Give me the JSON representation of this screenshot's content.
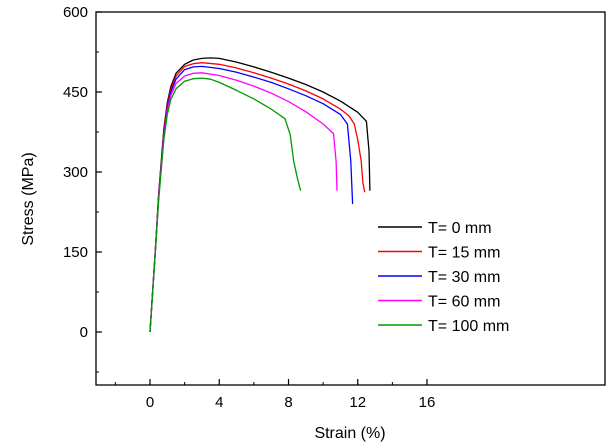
{
  "chart_data": {
    "type": "line",
    "xlabel": "Strain (%)",
    "ylabel": "Stress (MPa)",
    "xlim": [
      -2,
      17
    ],
    "ylim": [
      -100,
      600
    ],
    "xticks": [
      0,
      4,
      8,
      12,
      16
    ],
    "xtick_labels": [
      "0",
      "4",
      "8",
      "12",
      "16"
    ],
    "yticks": [
      0,
      150,
      300,
      450,
      600
    ],
    "ytick_labels": [
      "0",
      "150",
      "300",
      "450",
      "600"
    ],
    "grid": false,
    "legend_position": "center-right",
    "series": [
      {
        "name": "T= 0 mm",
        "color": "#000000",
        "x": [
          0,
          0.3,
          0.5,
          0.8,
          1.0,
          1.2,
          1.5,
          2.0,
          2.5,
          3.0,
          3.5,
          4.0,
          5.0,
          6.0,
          7.0,
          8.0,
          9.0,
          10.0,
          11.0,
          12.0,
          12.5,
          12.65,
          12.7
        ],
        "y": [
          0,
          150,
          260,
          380,
          430,
          460,
          485,
          502,
          510,
          513,
          514,
          513,
          506,
          497,
          487,
          476,
          464,
          450,
          433,
          412,
          395,
          340,
          265
        ]
      },
      {
        "name": "T= 15 mm",
        "color": "#ff0000",
        "x": [
          0,
          0.3,
          0.5,
          0.8,
          1.0,
          1.2,
          1.5,
          2.0,
          2.5,
          3.0,
          4.0,
          5.0,
          6.0,
          7.0,
          8.0,
          9.0,
          10.0,
          11.0,
          11.5,
          11.8,
          12.0,
          12.2,
          12.3,
          12.4
        ],
        "y": [
          0,
          150,
          258,
          375,
          425,
          455,
          480,
          498,
          503,
          505,
          502,
          495,
          486,
          476,
          465,
          452,
          437,
          418,
          405,
          390,
          360,
          320,
          280,
          262
        ]
      },
      {
        "name": "T= 30 mm",
        "color": "#0000ff",
        "x": [
          0,
          0.3,
          0.5,
          0.8,
          1.0,
          1.2,
          1.5,
          2.0,
          2.5,
          3.0,
          4.0,
          5.0,
          6.0,
          7.0,
          8.0,
          9.0,
          10.0,
          11.0,
          11.4,
          11.6,
          11.7
        ],
        "y": [
          0,
          148,
          255,
          370,
          420,
          450,
          474,
          492,
          497,
          498,
          494,
          487,
          478,
          468,
          456,
          443,
          428,
          408,
          390,
          320,
          240
        ]
      },
      {
        "name": "T= 60 mm",
        "color": "#ff00ff",
        "x": [
          0,
          0.3,
          0.5,
          0.8,
          1.0,
          1.2,
          1.5,
          2.0,
          2.5,
          3.0,
          4.0,
          5.0,
          6.0,
          7.0,
          8.0,
          9.0,
          10.0,
          10.6,
          10.75,
          10.8
        ],
        "y": [
          0,
          147,
          252,
          365,
          415,
          444,
          466,
          480,
          485,
          486,
          481,
          472,
          461,
          448,
          432,
          413,
          390,
          372,
          320,
          265
        ]
      },
      {
        "name": "T= 100 mm",
        "color": "#009900",
        "x": [
          0,
          0.3,
          0.5,
          0.8,
          1.0,
          1.2,
          1.5,
          2.0,
          2.5,
          3.0,
          3.5,
          4.0,
          5.0,
          6.0,
          7.0,
          7.8,
          8.1,
          8.3,
          8.5,
          8.7
        ],
        "y": [
          0,
          145,
          248,
          360,
          408,
          436,
          456,
          470,
          475,
          476,
          474,
          468,
          453,
          437,
          418,
          400,
          370,
          320,
          290,
          265
        ]
      }
    ]
  }
}
